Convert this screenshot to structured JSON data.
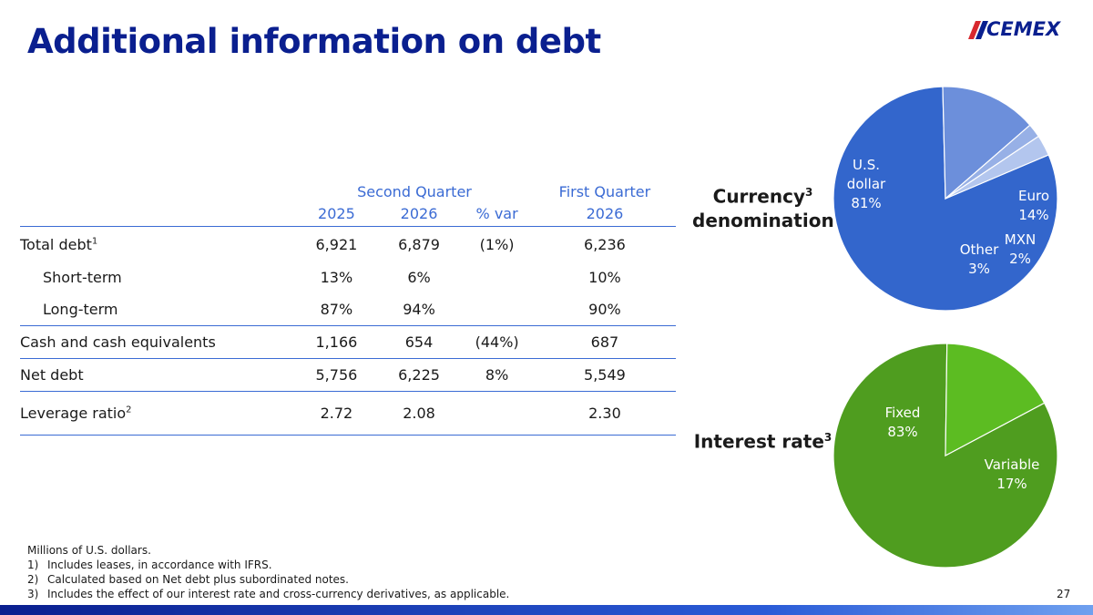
{
  "title": "Additional information on debt",
  "logo": {
    "text": "CEMEX",
    "icon": "cemex-logo-icon",
    "colors": {
      "brand": "#0a1f8f",
      "accent": "#d7282f"
    }
  },
  "table": {
    "group_headers": {
      "second_quarter": "Second Quarter",
      "first_quarter": "First Quarter"
    },
    "columns": [
      "2025",
      "2026",
      "% var",
      "2026"
    ],
    "rows": [
      {
        "label": "Total debt",
        "sup": "1",
        "values": [
          "6,921",
          "6,879",
          "(1%)",
          "6,236"
        ]
      },
      {
        "label": "Short-term",
        "sup": "",
        "values": [
          "13%",
          "6%",
          "",
          "10%"
        ]
      },
      {
        "label": "Long-term",
        "sup": "",
        "values": [
          "87%",
          "94%",
          "",
          "90%"
        ]
      },
      {
        "label": "Cash and cash equivalents",
        "sup": "",
        "values": [
          "1,166",
          "654",
          "(44%)",
          "687"
        ]
      },
      {
        "label": "Net debt",
        "sup": "",
        "values": [
          "5,756",
          "6,225",
          "8%",
          "5,549"
        ]
      },
      {
        "label": "Leverage ratio",
        "sup": "2",
        "values": [
          "2.72",
          "2.08",
          "",
          "2.30"
        ]
      }
    ]
  },
  "chart_data": [
    {
      "type": "pie",
      "label": "Currency",
      "label_line2": "denomination",
      "label_sup": "3",
      "slices": [
        {
          "name": "U.S. dollar",
          "value": 81,
          "value_label": "81%",
          "color": "#3366cc"
        },
        {
          "name": "Euro",
          "value": 14,
          "value_label": "14%",
          "color": "#6c8fdb"
        },
        {
          "name": "MXN",
          "value": 2,
          "value_label": "2%",
          "color": "#97b0e6"
        },
        {
          "name": "Other",
          "value": 3,
          "value_label": "3%",
          "color": "#b3c6ee"
        }
      ]
    },
    {
      "type": "pie",
      "label": "Interest rate",
      "label_sup": "3",
      "slices": [
        {
          "name": "Fixed",
          "value": 83,
          "value_label": "83%",
          "color": "#4f9d1f"
        },
        {
          "name": "Variable",
          "value": 17,
          "value_label": "17%",
          "color": "#5cbc22"
        }
      ]
    }
  ],
  "footnotes": {
    "units": "Millions of U.S. dollars.",
    "notes": [
      {
        "num": "1)",
        "text": "Includes leases, in accordance with IFRS."
      },
      {
        "num": "2)",
        "text": "Calculated based on Net debt plus subordinated notes."
      },
      {
        "num": "3)",
        "text": "Includes the effect of our interest rate and cross-currency derivatives, as applicable."
      }
    ]
  },
  "page_number": "27"
}
